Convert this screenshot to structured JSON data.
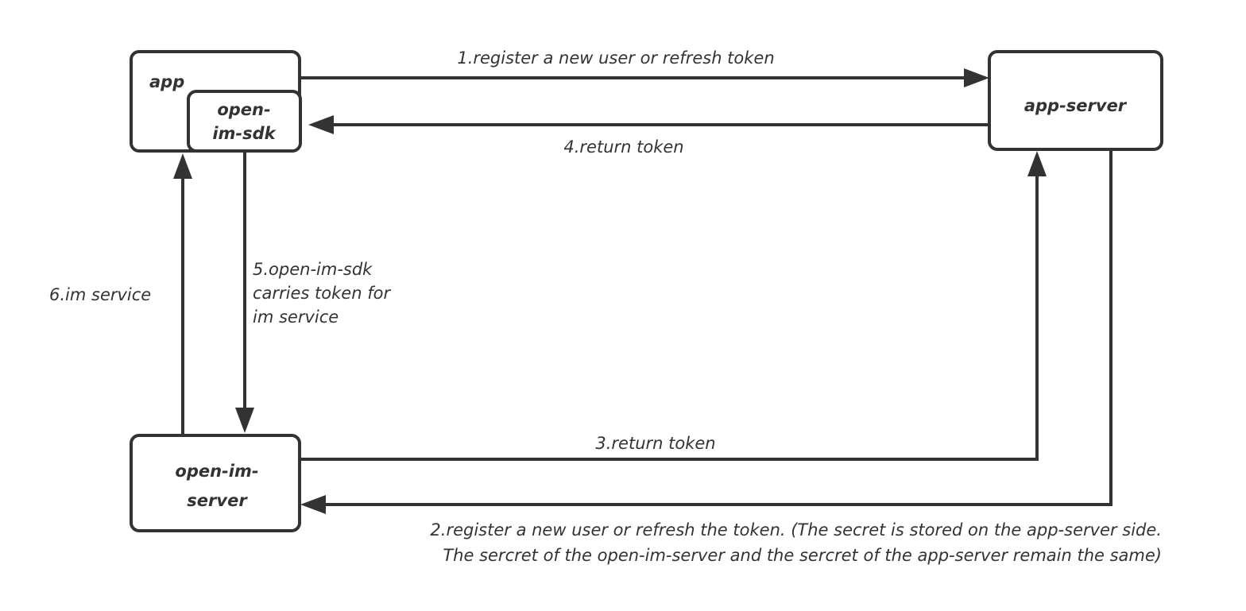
{
  "nodes": {
    "app": "app",
    "sdk_line1": "open-",
    "sdk_line2": "im-sdk",
    "app_server": "app-server",
    "im_server_line1": "open-im-",
    "im_server_line2": "server"
  },
  "edges": {
    "e1": "1.register a new user or refresh token",
    "e2_line1": "2.register a new user or refresh the token. (The secret is stored on the app-server side.",
    "e2_line2": "The sercret of the open-im-server and the sercret of the app-server remain the same)",
    "e3": "3.return token",
    "e4": "4.return token",
    "e5_line1": "5.open-im-sdk",
    "e5_line2": "carries token for",
    "e5_line3": "im service",
    "e6": "6.im service"
  }
}
